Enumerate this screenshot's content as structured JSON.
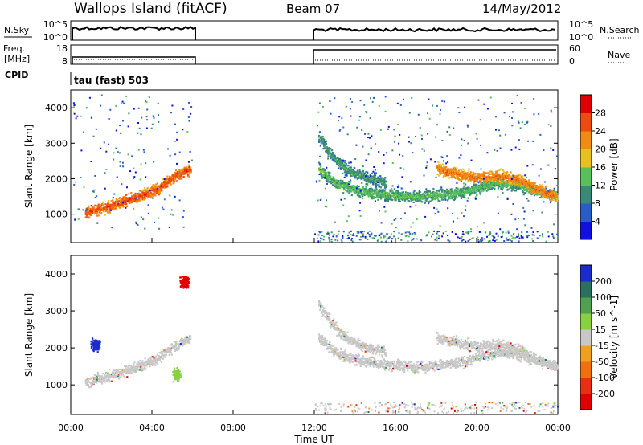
{
  "header": {
    "station": "Wallops Island (fitACF)",
    "beam": "Beam 07",
    "date": "14/May/2012"
  },
  "top_panels": {
    "nsky": {
      "label": "N.Sky",
      "ticks_left": [
        "10^5",
        "10^0"
      ],
      "label_right": "N.Search",
      "ticks_right": [
        "10^5",
        "10^0"
      ]
    },
    "freq": {
      "label": "Freq.",
      "unit": "[MHz]",
      "ticks_left": [
        "18",
        "8"
      ],
      "label_right": "Nave",
      "ticks_right": [
        "60",
        "0"
      ]
    },
    "cpid_label": "CPID",
    "cpid_value": "tau (fast) 503"
  },
  "colors": {
    "power": [
      "#1010e0",
      "#2a5cc8",
      "#3a8a78",
      "#58c058",
      "#e8c020",
      "#f08c14",
      "#ec4c10",
      "#e00000"
    ],
    "velocity": [
      "#1c2ccc",
      "#2a7060",
      "#50a050",
      "#88d040",
      "#c8c8c8",
      "#f0a020",
      "#f07010",
      "#e83010",
      "#e00000"
    ]
  },
  "chart_data": [
    {
      "type": "heatmap",
      "xlabel": "",
      "ylabel": "Slant Range [km]",
      "xlim": [
        0,
        24
      ],
      "ylim": [
        200,
        4500
      ],
      "yticks": [
        1000,
        2000,
        3000,
        4000
      ],
      "colorbar": {
        "label": "Power [dB]",
        "range": [
          0,
          32
        ],
        "ticks": [
          "4",
          "8",
          "12",
          "16",
          "20",
          "24",
          "28"
        ]
      },
      "data_gap_hours": [
        6,
        12
      ],
      "echo_traces": [
        {
          "t": [
            0.7,
            1.5,
            2.5,
            3.5,
            4.3,
            5.0,
            5.9
          ],
          "range_km": [
            1050,
            1200,
            1350,
            1550,
            1750,
            2050,
            2300
          ],
          "power_db": 26
        },
        {
          "t": [
            12.2,
            13.0,
            14.0,
            15.0,
            16.0,
            17.0,
            18.0,
            19.0,
            20.0,
            21.0,
            22.0,
            23.0,
            24.0
          ],
          "range_km": [
            2300,
            1900,
            1700,
            1600,
            1550,
            1500,
            1550,
            1600,
            1750,
            1900,
            1850,
            1650,
            1500
          ],
          "power_db": 14
        },
        {
          "t": [
            12.2,
            12.8,
            13.5,
            14.5,
            15.5
          ],
          "range_km": [
            3200,
            2700,
            2300,
            2050,
            1900
          ],
          "power_db": 12
        },
        {
          "t": [
            18.0,
            19.0,
            20.0,
            21.0,
            22.0,
            23.0,
            24.0
          ],
          "range_km": [
            2300,
            2150,
            2050,
            2100,
            2000,
            1700,
            1500
          ],
          "power_db": 24
        }
      ]
    },
    {
      "type": "heatmap",
      "xlabel": "Time UT",
      "ylabel": "Slant Range [km]",
      "xlim": [
        0,
        24
      ],
      "ylim": [
        200,
        4500
      ],
      "xticks": [
        "00:00",
        "04:00",
        "08:00",
        "12:00",
        "16:00",
        "20:00",
        "00:00"
      ],
      "yticks": [
        1000,
        2000,
        3000,
        4000
      ],
      "colorbar": {
        "label": "Velocity [m s^-1]",
        "ticks": [
          "200",
          "100",
          "50",
          "15",
          "-15",
          "-50",
          "-100",
          "-200"
        ]
      },
      "features": [
        {
          "kind": "ground_scatter",
          "color": "grey",
          "velocity": 0
        },
        {
          "kind": "blob",
          "t": 1.2,
          "range_km": 2100,
          "velocity": 200
        },
        {
          "kind": "blob",
          "t": 5.2,
          "range_km": 1300,
          "velocity": 50
        },
        {
          "kind": "blob",
          "t": 5.6,
          "range_km": 3800,
          "velocity": -200
        }
      ]
    }
  ]
}
